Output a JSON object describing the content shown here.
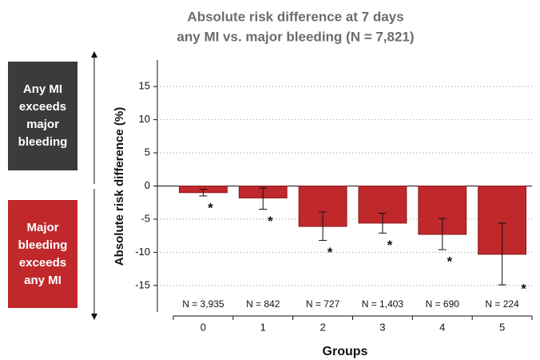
{
  "chart_data": {
    "type": "bar",
    "title": "Absolute risk difference at 7 days",
    "subtitle": "any MI vs. major bleeding (N = 7,821)",
    "x_label": "Groups",
    "y_label": "Absolute risk difference (%)",
    "categories": [
      "0",
      "1",
      "2",
      "3",
      "4",
      "5"
    ],
    "values": [
      -1.0,
      -1.8,
      -6.1,
      -5.6,
      -7.3,
      -10.3
    ],
    "ci_lower": [
      -1.5,
      -3.5,
      -8.2,
      -7.1,
      -9.6,
      -14.9
    ],
    "ci_upper": [
      -0.5,
      -0.3,
      -3.9,
      -4.1,
      -4.9,
      -5.6
    ],
    "sample_sizes": [
      "N = 3,935",
      "N = 842",
      "N = 727",
      "N = 1,403",
      "N = 690",
      "N = 224"
    ],
    "significance_markers": [
      "*",
      "*",
      "*",
      "*",
      "*",
      "*"
    ],
    "color": "#c0282c",
    "ylim": [
      -19,
      19
    ],
    "yticks": [
      -15,
      -10,
      -5,
      0,
      5,
      10,
      15
    ],
    "grid": true,
    "annotations": [
      "Any MI exceeds major bleeding",
      "Major bleeding exceeds any MI"
    ]
  }
}
